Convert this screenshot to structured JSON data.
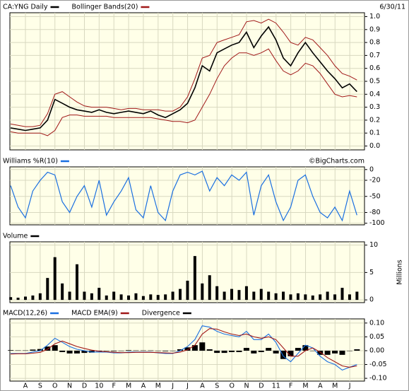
{
  "chart_data": [
    {
      "type": "price",
      "date": "6/30/11",
      "series": [
        {
          "name": "CA:YNG Daily",
          "color": "#000000",
          "values": [
            0.14,
            0.13,
            0.12,
            0.13,
            0.14,
            0.2,
            0.36,
            0.33,
            0.3,
            0.28,
            0.27,
            0.26,
            0.28,
            0.26,
            0.25,
            0.26,
            0.27,
            0.26,
            0.25,
            0.27,
            0.24,
            0.22,
            0.25,
            0.28,
            0.33,
            0.45,
            0.62,
            0.58,
            0.72,
            0.75,
            0.78,
            0.8,
            0.88,
            0.76,
            0.85,
            0.92,
            0.82,
            0.68,
            0.62,
            0.72,
            0.8,
            0.72,
            0.65,
            0.58,
            0.52,
            0.45,
            0.48,
            0.42
          ]
        },
        {
          "name": "Bollinger Bands(20)",
          "color": "#a01818",
          "upper": [
            0.17,
            0.16,
            0.15,
            0.15,
            0.16,
            0.25,
            0.4,
            0.42,
            0.38,
            0.34,
            0.31,
            0.3,
            0.3,
            0.3,
            0.29,
            0.28,
            0.29,
            0.29,
            0.28,
            0.28,
            0.28,
            0.27,
            0.27,
            0.3,
            0.38,
            0.52,
            0.68,
            0.7,
            0.8,
            0.82,
            0.84,
            0.86,
            0.96,
            0.97,
            0.95,
            0.98,
            0.95,
            0.88,
            0.8,
            0.78,
            0.84,
            0.82,
            0.76,
            0.7,
            0.62,
            0.56,
            0.54,
            0.51
          ],
          "lower": [
            0.11,
            0.1,
            0.1,
            0.1,
            0.1,
            0.08,
            0.12,
            0.22,
            0.24,
            0.24,
            0.23,
            0.23,
            0.23,
            0.23,
            0.22,
            0.22,
            0.22,
            0.22,
            0.22,
            0.22,
            0.21,
            0.2,
            0.19,
            0.19,
            0.18,
            0.2,
            0.3,
            0.4,
            0.52,
            0.62,
            0.68,
            0.72,
            0.72,
            0.7,
            0.72,
            0.75,
            0.66,
            0.58,
            0.55,
            0.58,
            0.64,
            0.62,
            0.56,
            0.48,
            0.4,
            0.38,
            0.39,
            0.38
          ]
        }
      ],
      "ylim": [
        -0.03,
        1.03
      ],
      "yticks": [
        {
          "value": 0,
          "label": "0.0"
        },
        0.1,
        0.2,
        0.3,
        0.4,
        0.5,
        0.6,
        0.7,
        0.8,
        0.9,
        {
          "value": 1,
          "label": "1.0"
        }
      ],
      "grid": true
    },
    {
      "type": "line",
      "annotation": "©BigCharts.com",
      "series": [
        {
          "name": "Williams %R(10)",
          "color": "#1a6fe0",
          "values": [
            -30,
            -70,
            -90,
            -40,
            -20,
            -5,
            -10,
            -60,
            -80,
            -50,
            -30,
            -70,
            -20,
            -85,
            -60,
            -40,
            -15,
            -75,
            -90,
            -30,
            -80,
            -95,
            -40,
            -10,
            -5,
            -10,
            -3,
            -40,
            -15,
            -30,
            -10,
            -20,
            -5,
            -85,
            -30,
            -10,
            -60,
            -95,
            -70,
            -20,
            -10,
            -50,
            -80,
            -90,
            -70,
            -95,
            -40,
            -85
          ]
        }
      ],
      "ylim": [
        -103,
        5
      ],
      "yticks": [
        0,
        -20,
        -50,
        -80,
        -100
      ],
      "grid": true
    },
    {
      "type": "bar",
      "title": "Volume",
      "color": "#000000",
      "ylabel": "Millions",
      "values": [
        0.5,
        0.4,
        0.6,
        0.8,
        1.2,
        4.0,
        7.8,
        3.0,
        1.5,
        6.5,
        1.5,
        1.2,
        2.2,
        0.8,
        1.5,
        1.0,
        0.8,
        1.2,
        0.7,
        1.0,
        0.9,
        1.0,
        1.5,
        2.0,
        3.5,
        8.0,
        3.0,
        4.5,
        2.5,
        1.5,
        2.0,
        1.8,
        2.5,
        1.5,
        2.0,
        1.5,
        1.2,
        1.5,
        1.0,
        1.2,
        1.0,
        0.8,
        1.0,
        1.5,
        1.0,
        2.2,
        1.0,
        1.5
      ],
      "ylim": [
        -0.5,
        10.6
      ],
      "yticks": [
        0,
        5,
        10
      ],
      "grid": true
    },
    {
      "type": "macd",
      "series": [
        {
          "name": "MACD(12,26)",
          "color": "#1a6fe0",
          "values": [
            -0.01,
            -0.01,
            -0.01,
            -0.005,
            0,
            0.02,
            0.045,
            0.03,
            0.015,
            0.005,
            0,
            -0.005,
            -0.005,
            -0.005,
            -0.008,
            -0.008,
            -0.005,
            -0.005,
            -0.005,
            -0.005,
            -0.008,
            -0.01,
            -0.01,
            0,
            0.015,
            0.04,
            0.09,
            0.085,
            0.07,
            0.06,
            0.055,
            0.05,
            0.07,
            0.04,
            0.04,
            0.06,
            0.03,
            -0.02,
            -0.04,
            -0.01,
            0.02,
            0.01,
            -0.02,
            -0.04,
            -0.05,
            -0.07,
            -0.06,
            -0.05
          ]
        },
        {
          "name": "MACD EMA(9)",
          "color": "#a01818",
          "values": [
            -0.012,
            -0.011,
            -0.011,
            -0.009,
            -0.006,
            0.005,
            0.025,
            0.035,
            0.025,
            0.015,
            0.008,
            0.002,
            -0.002,
            -0.004,
            -0.006,
            -0.007,
            -0.007,
            -0.006,
            -0.006,
            -0.006,
            -0.007,
            -0.008,
            -0.009,
            -0.005,
            0.003,
            0.02,
            0.06,
            0.08,
            0.078,
            0.068,
            0.06,
            0.055,
            0.06,
            0.05,
            0.045,
            0.05,
            0.04,
            0.01,
            -0.02,
            -0.02,
            0,
            0.01,
            -0.005,
            -0.025,
            -0.04,
            -0.055,
            -0.06,
            -0.055
          ]
        },
        {
          "name": "Divergence",
          "color": "#000000",
          "style": "bar",
          "values": [
            0.002,
            0.001,
            0.001,
            0.004,
            0.006,
            0.015,
            0.02,
            -0.005,
            -0.01,
            -0.01,
            -0.008,
            -0.007,
            -0.003,
            -0.001,
            -0.002,
            -0.001,
            0.002,
            0.001,
            0.001,
            0.001,
            -0.001,
            -0.002,
            -0.001,
            0.005,
            0.012,
            0.02,
            0.03,
            0.005,
            -0.008,
            -0.008,
            -0.005,
            -0.005,
            0.01,
            -0.01,
            -0.005,
            0.01,
            -0.01,
            -0.03,
            -0.02,
            0.01,
            0.02,
            0,
            -0.015,
            -0.015,
            -0.01,
            -0.015,
            0,
            0.005
          ]
        }
      ],
      "ylim": [
        -0.11,
        0.115
      ],
      "yticks": [
        {
          "value": 0.1,
          "label": "0.10"
        },
        {
          "value": 0.05,
          "label": "0.05"
        },
        {
          "value": 0,
          "label": "0.00"
        },
        {
          "value": -0.05,
          "label": "-0.05"
        },
        {
          "value": -0.1,
          "label": "-0.10"
        }
      ],
      "grid": true,
      "x_labels": [
        "A",
        "S",
        "O",
        "N",
        "D",
        "10",
        "F",
        "M",
        "A",
        "M",
        "J",
        "J",
        "A",
        "S",
        "O",
        "N",
        "D",
        "11",
        "F",
        "M",
        "A",
        "M",
        "J"
      ]
    }
  ]
}
